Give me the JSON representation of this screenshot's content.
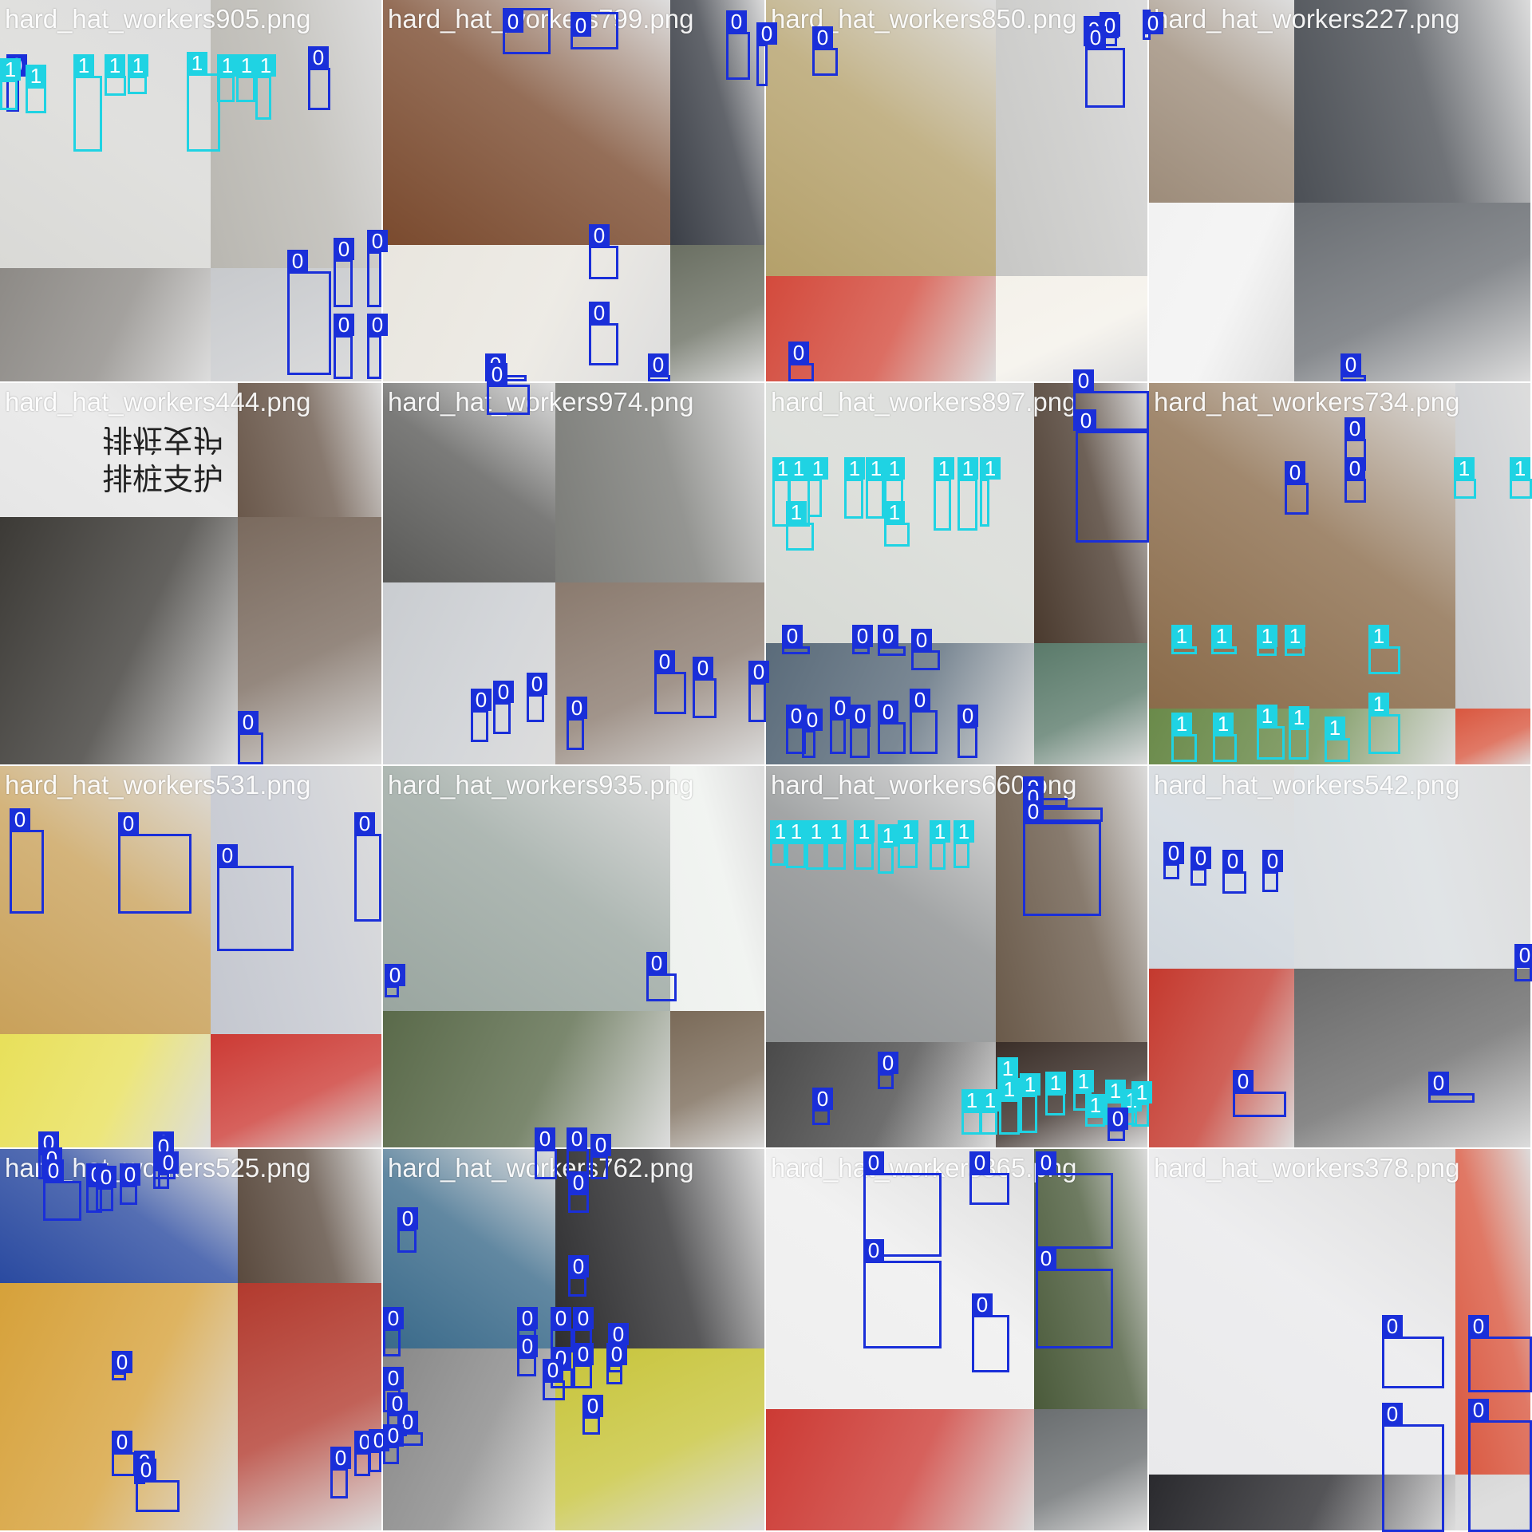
{
  "colors": {
    "class_0": "#1a2fd9",
    "class_1": "#1fd3e3",
    "label_text": "#ffffff"
  },
  "tiles": [
    {
      "file": "hard_hat_workers905.png",
      "bg": [
        "#d9d9d6",
        "#b9b7b1",
        "#8d8a86",
        "#c7c9cc"
      ],
      "boxes": [
        [
          0,
          8,
          95,
          24,
          140
        ],
        [
          1,
          0,
          100,
          22,
          138
        ],
        [
          1,
          32,
          108,
          58,
          142
        ],
        [
          1,
          92,
          95,
          128,
          190
        ],
        [
          1,
          131,
          95,
          158,
          120
        ],
        [
          1,
          160,
          95,
          184,
          118
        ],
        [
          1,
          234,
          92,
          276,
          190
        ],
        [
          1,
          272,
          95,
          294,
          128
        ],
        [
          1,
          296,
          95,
          320,
          128
        ],
        [
          1,
          320,
          95,
          340,
          150
        ],
        [
          0,
          386,
          85,
          414,
          138
        ],
        [
          0,
          360,
          340,
          415,
          470
        ],
        [
          0,
          418,
          325,
          442,
          385
        ],
        [
          0,
          460,
          315,
          478,
          385
        ],
        [
          0,
          418,
          420,
          442,
          475
        ],
        [
          0,
          460,
          420,
          478,
          475
        ]
      ]
    },
    {
      "file": "hard_hat_workers799.png",
      "bg": [
        "#7a4a2e",
        "#3b3f47",
        "#e9e6df",
        "#6a6f62"
      ],
      "boxes": [
        [
          0,
          630,
          10,
          690,
          68
        ],
        [
          0,
          715,
          15,
          775,
          62
        ],
        [
          0,
          910,
          40,
          940,
          100
        ],
        [
          0,
          948,
          55,
          962,
          108
        ],
        [
          0,
          738,
          308,
          775,
          350
        ],
        [
          0,
          738,
          405,
          775,
          458
        ],
        [
          0,
          608,
          470,
          660,
          478
        ],
        [
          0,
          812,
          470,
          840,
          478
        ]
      ]
    },
    {
      "file": "hard_hat_workers850.png",
      "bg": [
        "#b4a06a",
        "#c7c7c5",
        "#d34a3c",
        "#f4f1ea"
      ],
      "boxes": [
        [
          0,
          1018,
          60,
          1050,
          95
        ],
        [
          0,
          1358,
          20,
          1400,
          58
        ],
        [
          0,
          1378,
          15,
          1402,
          48
        ],
        [
          0,
          1432,
          12,
          1442,
          50
        ],
        [
          0,
          1360,
          60,
          1410,
          135
        ],
        [
          0,
          988,
          455,
          1020,
          478
        ]
      ]
    },
    {
      "file": "hard_hat_workers227.png",
      "bg": [
        "#9d8c7a",
        "#4c5056",
        "#f2f2f2",
        "#6a6e73"
      ],
      "boxes": [
        [
          0,
          1680,
          470,
          1712,
          478
        ]
      ]
    },
    {
      "file": "hard_hat_workers444.png",
      "bg": [
        "#e6e6e6",
        "#6a584b",
        "#3c3a36",
        "#7a6a5e"
      ],
      "boxes": [
        [
          0,
          298,
          918,
          330,
          958
        ]
      ]
    },
    {
      "file": "hard_hat_workers974.png",
      "bg": [
        "#5a5a58",
        "#7a7b77",
        "#c9ccd0",
        "#8a7a6e"
      ],
      "boxes": [
        [
          0,
          610,
          482,
          664,
          520
        ],
        [
          0,
          590,
          890,
          612,
          930
        ],
        [
          0,
          618,
          880,
          640,
          920
        ],
        [
          0,
          660,
          870,
          682,
          905
        ],
        [
          0,
          710,
          900,
          732,
          940
        ],
        [
          0,
          820,
          842,
          860,
          895
        ],
        [
          0,
          868,
          850,
          898,
          900
        ],
        [
          0,
          938,
          855,
          960,
          905
        ]
      ]
    },
    {
      "file": "hard_hat_workers897.png",
      "bg": [
        "#d6d9d4",
        "#4a3a2e",
        "#5a6b7a",
        "#5a7a6a"
      ],
      "boxes": [
        [
          0,
          1345,
          490,
          1440,
          540
        ],
        [
          0,
          1348,
          540,
          1440,
          680
        ],
        [
          1,
          968,
          600,
          990,
          660
        ],
        [
          1,
          988,
          600,
          1015,
          660
        ],
        [
          1,
          1012,
          600,
          1030,
          648
        ],
        [
          1,
          1058,
          600,
          1082,
          650
        ],
        [
          1,
          1085,
          600,
          1108,
          650
        ],
        [
          1,
          1108,
          600,
          1132,
          650
        ],
        [
          1,
          1170,
          600,
          1192,
          665
        ],
        [
          1,
          1200,
          600,
          1225,
          665
        ],
        [
          1,
          1228,
          600,
          1240,
          660
        ],
        [
          1,
          985,
          655,
          1020,
          690
        ],
        [
          1,
          1108,
          655,
          1140,
          685
        ],
        [
          0,
          980,
          810,
          1015,
          820
        ],
        [
          0,
          1068,
          810,
          1090,
          820
        ],
        [
          0,
          1100,
          810,
          1135,
          822
        ],
        [
          0,
          1142,
          815,
          1178,
          840
        ],
        [
          0,
          985,
          910,
          1010,
          945
        ],
        [
          0,
          1005,
          915,
          1022,
          950
        ],
        [
          0,
          1040,
          900,
          1060,
          945
        ],
        [
          0,
          1065,
          910,
          1090,
          950
        ],
        [
          0,
          1100,
          905,
          1135,
          945
        ],
        [
          0,
          1140,
          890,
          1175,
          945
        ],
        [
          0,
          1200,
          910,
          1225,
          950
        ]
      ]
    },
    {
      "file": "hard_hat_workers734.png",
      "bg": [
        "#8a6b4a",
        "#c7c9cc",
        "#6a8a4a",
        "#d9573f"
      ],
      "boxes": [
        [
          0,
          1610,
          605,
          1640,
          645
        ],
        [
          0,
          1685,
          550,
          1712,
          590
        ],
        [
          0,
          1685,
          600,
          1712,
          630
        ],
        [
          1,
          1822,
          600,
          1850,
          625
        ],
        [
          1,
          1892,
          600,
          1920,
          625
        ],
        [
          1,
          1468,
          810,
          1500,
          820
        ],
        [
          1,
          1518,
          810,
          1550,
          820
        ],
        [
          1,
          1575,
          810,
          1600,
          822
        ],
        [
          1,
          1610,
          810,
          1635,
          822
        ],
        [
          1,
          1715,
          810,
          1755,
          845
        ],
        [
          1,
          1468,
          920,
          1500,
          955
        ],
        [
          1,
          1520,
          920,
          1550,
          955
        ],
        [
          1,
          1575,
          910,
          1610,
          952
        ],
        [
          1,
          1615,
          912,
          1640,
          952
        ],
        [
          1,
          1660,
          925,
          1692,
          955
        ],
        [
          1,
          1715,
          895,
          1755,
          945
        ]
      ]
    },
    {
      "file": "hard_hat_workers531.png",
      "bg": [
        "#c9a15a",
        "#c4c7cf",
        "#e8e05a",
        "#cc3a34"
      ],
      "boxes": [
        [
          0,
          12,
          1040,
          55,
          1145
        ],
        [
          0,
          148,
          1045,
          240,
          1145
        ],
        [
          0,
          272,
          1085,
          368,
          1192
        ],
        [
          0,
          444,
          1045,
          478,
          1155
        ],
        [
          0,
          48,
          1445,
          78,
          1478
        ],
        [
          0,
          52,
          1465,
          78,
          1478
        ],
        [
          0,
          192,
          1445,
          220,
          1478
        ],
        [
          0,
          192,
          1465,
          220,
          1478
        ]
      ]
    },
    {
      "file": "hard_hat_workers935.png",
      "bg": [
        "#9aa6a0",
        "#eef1ee",
        "#5a6a4a",
        "#7a6a58"
      ],
      "boxes": [
        [
          0,
          482,
          1235,
          500,
          1250
        ],
        [
          0,
          810,
          1220,
          848,
          1255
        ],
        [
          0,
          670,
          1440,
          698,
          1478
        ],
        [
          0,
          710,
          1440,
          738,
          1478
        ],
        [
          0,
          740,
          1448,
          762,
          1478
        ]
      ]
    },
    {
      "file": "hard_hat_workers660.png",
      "bg": [
        "#8c8f90",
        "#6a5a4a",
        "#4a4a4a",
        "#3a2e28"
      ],
      "boxes": [
        [
          0,
          1282,
          1000,
          1338,
          1012
        ],
        [
          0,
          1282,
          1012,
          1382,
          1030
        ],
        [
          0,
          1282,
          1030,
          1380,
          1148
        ],
        [
          1,
          965,
          1055,
          985,
          1085
        ],
        [
          1,
          985,
          1055,
          1010,
          1088
        ],
        [
          1,
          1010,
          1055,
          1035,
          1090
        ],
        [
          1,
          1035,
          1055,
          1060,
          1090
        ],
        [
          1,
          1070,
          1055,
          1095,
          1090
        ],
        [
          1,
          1100,
          1060,
          1120,
          1095
        ],
        [
          1,
          1125,
          1055,
          1150,
          1088
        ],
        [
          1,
          1165,
          1055,
          1185,
          1090
        ],
        [
          1,
          1195,
          1055,
          1215,
          1088
        ],
        [
          0,
          1100,
          1345,
          1120,
          1365
        ],
        [
          0,
          1018,
          1390,
          1040,
          1410
        ],
        [
          1,
          1250,
          1352,
          1272,
          1380
        ],
        [
          1,
          1205,
          1392,
          1230,
          1422
        ],
        [
          1,
          1228,
          1392,
          1250,
          1422
        ],
        [
          1,
          1252,
          1378,
          1278,
          1422
        ],
        [
          1,
          1278,
          1372,
          1300,
          1420
        ],
        [
          1,
          1310,
          1370,
          1335,
          1398
        ],
        [
          1,
          1345,
          1368,
          1368,
          1392
        ],
        [
          1,
          1360,
          1398,
          1385,
          1412
        ],
        [
          1,
          1385,
          1380,
          1410,
          1410
        ],
        [
          1,
          1405,
          1392,
          1425,
          1410
        ],
        [
          1,
          1418,
          1382,
          1440,
          1412
        ],
        [
          0,
          1388,
          1415,
          1410,
          1430
        ]
      ]
    },
    {
      "file": "hard_hat_workers542.png",
      "bg": [
        "#cfd6dd",
        "#d9dde0",
        "#c4392e",
        "#6a6a6a"
      ],
      "boxes": [
        [
          0,
          1458,
          1082,
          1478,
          1102
        ],
        [
          0,
          1492,
          1088,
          1512,
          1110
        ],
        [
          0,
          1532,
          1092,
          1562,
          1120
        ],
        [
          0,
          1582,
          1092,
          1602,
          1118
        ],
        [
          0,
          1898,
          1210,
          1920,
          1230
        ],
        [
          0,
          1545,
          1368,
          1612,
          1400
        ],
        [
          0,
          1790,
          1370,
          1848,
          1382
        ]
      ]
    },
    {
      "file": "hard_hat_workers525.png",
      "bg": [
        "#2a4aa0",
        "#5a4a3e",
        "#d6a13a",
        "#b23a2e"
      ],
      "boxes": [
        [
          0,
          54,
          1480,
          102,
          1530
        ],
        [
          0,
          108,
          1485,
          128,
          1520
        ],
        [
          0,
          120,
          1488,
          142,
          1518
        ],
        [
          0,
          150,
          1485,
          172,
          1510
        ],
        [
          0,
          192,
          1450,
          212,
          1490
        ],
        [
          0,
          198,
          1470,
          212,
          1490
        ],
        [
          0,
          140,
          1720,
          158,
          1730
        ],
        [
          0,
          140,
          1820,
          170,
          1850
        ],
        [
          0,
          168,
          1845,
          182,
          1860
        ],
        [
          0,
          170,
          1855,
          225,
          1895
        ],
        [
          0,
          414,
          1840,
          436,
          1878
        ],
        [
          0,
          444,
          1820,
          464,
          1850
        ],
        [
          0,
          462,
          1818,
          478,
          1845
        ]
      ]
    },
    {
      "file": "hard_hat_workers762.png",
      "bg": [
        "#3a6a8a",
        "#2e2e30",
        "#888888",
        "#c7c43a"
      ],
      "boxes": [
        [
          0,
          498,
          1540,
          522,
          1570
        ],
        [
          0,
          712,
          1495,
          738,
          1520
        ],
        [
          0,
          712,
          1600,
          735,
          1625
        ],
        [
          0,
          480,
          1665,
          502,
          1700
        ],
        [
          0,
          648,
          1665,
          672,
          1690
        ],
        [
          0,
          690,
          1665,
          718,
          1695
        ],
        [
          0,
          718,
          1665,
          742,
          1690
        ],
        [
          0,
          762,
          1685,
          780,
          1720
        ],
        [
          0,
          648,
          1700,
          672,
          1725
        ],
        [
          0,
          690,
          1715,
          718,
          1740
        ],
        [
          0,
          718,
          1710,
          742,
          1740
        ],
        [
          0,
          760,
          1710,
          780,
          1735
        ],
        [
          0,
          480,
          1740,
          502,
          1770
        ],
        [
          0,
          485,
          1772,
          510,
          1800
        ],
        [
          0,
          498,
          1795,
          530,
          1812
        ],
        [
          0,
          680,
          1730,
          708,
          1755
        ],
        [
          0,
          730,
          1775,
          752,
          1798
        ],
        [
          0,
          480,
          1812,
          500,
          1835
        ]
      ]
    },
    {
      "file": "hard_hat_workers365.png",
      "bg": [
        "#eeeeee",
        "#4a5a3a",
        "#cc3a34",
        "#6a6e70"
      ],
      "boxes": [
        [
          0,
          1082,
          1470,
          1180,
          1575
        ],
        [
          0,
          1082,
          1580,
          1180,
          1690
        ],
        [
          0,
          1215,
          1470,
          1265,
          1510
        ],
        [
          0,
          1298,
          1470,
          1395,
          1565
        ],
        [
          0,
          1298,
          1590,
          1395,
          1690
        ],
        [
          0,
          1218,
          1648,
          1265,
          1720
        ]
      ]
    },
    {
      "file": "hard_hat_workers378.png",
      "bg": [
        "#e9e9eb",
        "#d9573f",
        "#2a2a2e",
        "#d6d6d6"
      ],
      "boxes": [
        [
          0,
          1732,
          1675,
          1810,
          1740
        ],
        [
          0,
          1840,
          1675,
          1920,
          1745
        ],
        [
          0,
          1732,
          1785,
          1810,
          1920
        ],
        [
          0,
          1840,
          1780,
          1920,
          1920
        ]
      ]
    }
  ],
  "signs": [
    "排桩支护",
    "排桩支护"
  ],
  "class_names": [
    "0",
    "1"
  ]
}
